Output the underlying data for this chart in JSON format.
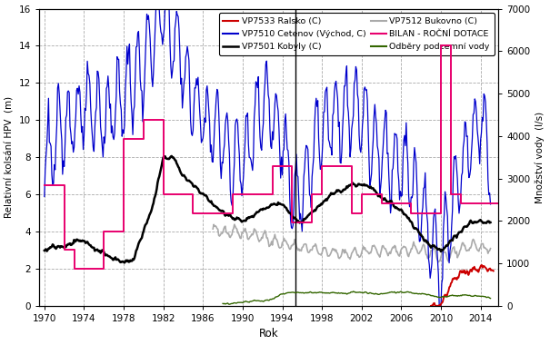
{
  "xlabel": "Rok",
  "ylabel_left": "Relativní kolsání HPV  (m)",
  "ylabel_right": "Množství vody  (l/s)",
  "xlim": [
    1969.5,
    2015.8
  ],
  "ylim_left": [
    0,
    16
  ],
  "ylim_right": [
    0,
    7000
  ],
  "xticks": [
    1970,
    1974,
    1978,
    1982,
    1986,
    1990,
    1994,
    1998,
    2002,
    2006,
    2010,
    2014
  ],
  "yticks_left": [
    0,
    2,
    4,
    6,
    8,
    10,
    12,
    14,
    16
  ],
  "yticks_right": [
    0,
    1000,
    2000,
    3000,
    4000,
    5000,
    6000,
    7000
  ],
  "grid_color": "#aaaaaa",
  "grid_style": "--",
  "bg_color": "#ffffff",
  "vline_x": 1995.3,
  "vline_color": "#000000",
  "color_red": "#cc0000",
  "color_blue": "#0000cc",
  "color_black": "#000000",
  "color_gray": "#aaaaaa",
  "color_pink": "#e8006e",
  "color_green": "#336600",
  "legend_labels": [
    "VP7533 Ralsko (C)",
    "VP7510 Cetenov (Východ, C)",
    "VP7501 Kobyly (C)",
    "VP7512 Bukovno (C)",
    "BILAN - ROČNÍ DOTACE",
    "Odběry podzemní vody"
  ]
}
